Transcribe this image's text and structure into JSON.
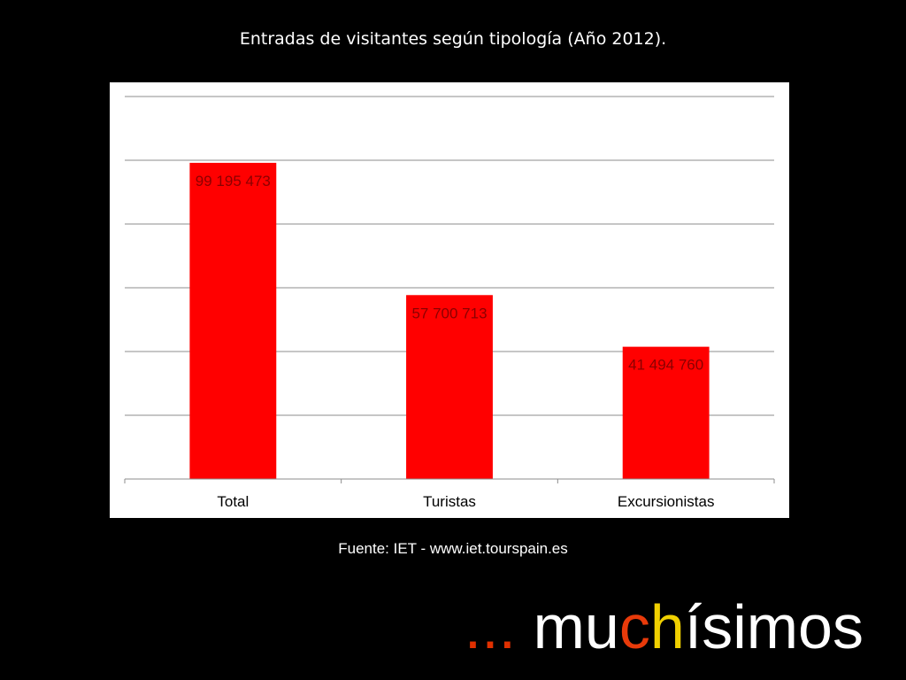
{
  "slide": {
    "title": "Entradas de visitantes según tipología (Año 2012).",
    "source": "Fuente: IET - www.iet.tourspain.es",
    "tagline": {
      "parts": [
        {
          "text": "... ",
          "color": "#e03000"
        },
        {
          "text": "mu",
          "color": "#ffffff"
        },
        {
          "text": "c",
          "color": "#e83a0a"
        },
        {
          "text": "h",
          "color": "#f0d000"
        },
        {
          "text": "ísimos",
          "color": "#ffffff"
        }
      ]
    },
    "background_color": "#000000"
  },
  "chart_data": {
    "type": "bar",
    "title": "",
    "xlabel": "",
    "ylabel": "",
    "categories": [
      "Total",
      "Turistas",
      "Excursionistas"
    ],
    "values": [
      99195473,
      57700713,
      41494760
    ],
    "data_labels": [
      "99 195 473",
      "57 700 713",
      "41 494 760"
    ],
    "ylim": [
      0,
      120000000
    ],
    "y_gridline_step": 20000000,
    "grid": true,
    "y_tick_labels_shown": false,
    "legend": "none",
    "bar_color": "#ff0000",
    "label_color": "#8b0000"
  }
}
